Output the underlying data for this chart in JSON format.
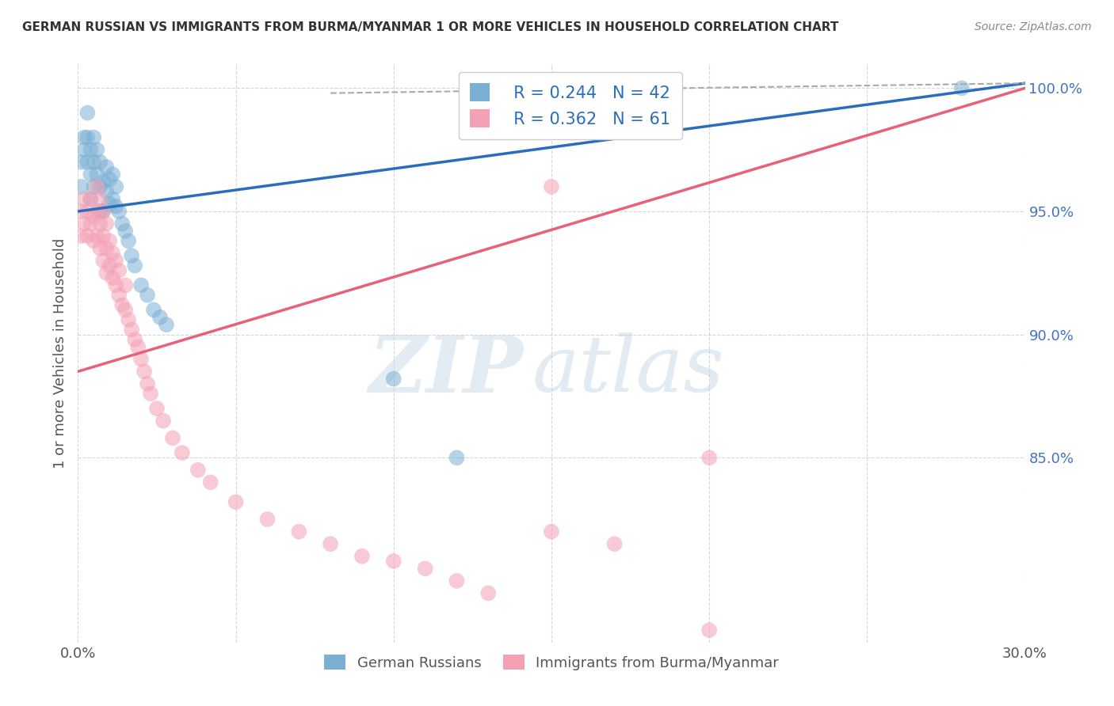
{
  "title": "GERMAN RUSSIAN VS IMMIGRANTS FROM BURMA/MYANMAR 1 OR MORE VEHICLES IN HOUSEHOLD CORRELATION CHART",
  "source": "Source: ZipAtlas.com",
  "ylabel": "1 or more Vehicles in Household",
  "xmin": 0.0,
  "xmax": 0.3,
  "ymin": 0.775,
  "ymax": 1.01,
  "yticks": [
    0.85,
    0.9,
    0.95,
    1.0
  ],
  "ytick_labels": [
    "85.0%",
    "90.0%",
    "95.0%",
    "100.0%"
  ],
  "blue_color": "#7bafd4",
  "pink_color": "#f4a0b5",
  "blue_line_color": "#2a6ebb",
  "pink_line_color": "#e8607a",
  "legend_label1": "German Russians",
  "legend_label2": "Immigrants from Burma/Myanmar",
  "watermark_zip": "ZIP",
  "watermark_atlas": "atlas",
  "blue_scatter_x": [
    0.001,
    0.001,
    0.002,
    0.002,
    0.003,
    0.003,
    0.003,
    0.004,
    0.004,
    0.004,
    0.005,
    0.005,
    0.005,
    0.006,
    0.006,
    0.007,
    0.007,
    0.007,
    0.008,
    0.008,
    0.009,
    0.009,
    0.01,
    0.01,
    0.011,
    0.011,
    0.012,
    0.012,
    0.013,
    0.014,
    0.015,
    0.016,
    0.017,
    0.018,
    0.02,
    0.022,
    0.024,
    0.026,
    0.028,
    0.1,
    0.12,
    0.28
  ],
  "blue_scatter_y": [
    0.96,
    0.97,
    0.975,
    0.98,
    0.97,
    0.98,
    0.99,
    0.955,
    0.965,
    0.975,
    0.96,
    0.97,
    0.98,
    0.965,
    0.975,
    0.95,
    0.96,
    0.97,
    0.95,
    0.962,
    0.958,
    0.968,
    0.953,
    0.963,
    0.955,
    0.965,
    0.952,
    0.96,
    0.95,
    0.945,
    0.942,
    0.938,
    0.932,
    0.928,
    0.92,
    0.916,
    0.91,
    0.907,
    0.904,
    0.882,
    0.85,
    1.0
  ],
  "pink_scatter_x": [
    0.001,
    0.001,
    0.002,
    0.002,
    0.003,
    0.003,
    0.004,
    0.004,
    0.005,
    0.005,
    0.006,
    0.006,
    0.006,
    0.007,
    0.007,
    0.007,
    0.008,
    0.008,
    0.008,
    0.009,
    0.009,
    0.009,
    0.01,
    0.01,
    0.011,
    0.011,
    0.012,
    0.012,
    0.013,
    0.013,
    0.014,
    0.015,
    0.015,
    0.016,
    0.017,
    0.018,
    0.019,
    0.02,
    0.021,
    0.022,
    0.023,
    0.025,
    0.027,
    0.03,
    0.033,
    0.038,
    0.042,
    0.05,
    0.06,
    0.07,
    0.08,
    0.09,
    0.1,
    0.11,
    0.12,
    0.13,
    0.15,
    0.17,
    0.2,
    0.15,
    0.2
  ],
  "pink_scatter_y": [
    0.94,
    0.95,
    0.945,
    0.955,
    0.94,
    0.95,
    0.945,
    0.955,
    0.938,
    0.948,
    0.94,
    0.95,
    0.96,
    0.935,
    0.945,
    0.955,
    0.93,
    0.94,
    0.95,
    0.925,
    0.935,
    0.945,
    0.928,
    0.938,
    0.923,
    0.933,
    0.92,
    0.93,
    0.916,
    0.926,
    0.912,
    0.91,
    0.92,
    0.906,
    0.902,
    0.898,
    0.895,
    0.89,
    0.885,
    0.88,
    0.876,
    0.87,
    0.865,
    0.858,
    0.852,
    0.845,
    0.84,
    0.832,
    0.825,
    0.82,
    0.815,
    0.81,
    0.808,
    0.805,
    0.8,
    0.795,
    0.82,
    0.815,
    0.85,
    0.96,
    0.78
  ],
  "blue_line_x": [
    0.0,
    0.3
  ],
  "blue_line_y": [
    0.95,
    1.002
  ],
  "pink_line_x": [
    0.0,
    0.3
  ],
  "pink_line_y": [
    0.885,
    1.0
  ],
  "dashed_line_x": [
    0.08,
    0.3
  ],
  "dashed_line_y": [
    0.998,
    1.002
  ]
}
